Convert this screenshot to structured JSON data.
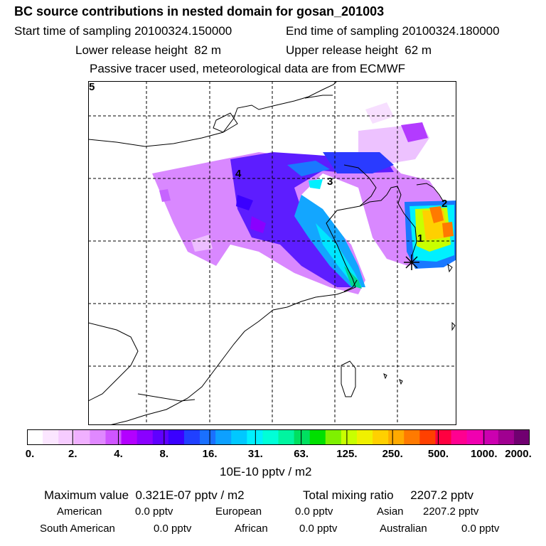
{
  "title": "BC  source contributions in nested domain for gosan_201003",
  "start_label": "Start time of sampling",
  "start_value": "20100324.150000",
  "end_label": "End time of sampling",
  "end_value": "20100324.180000",
  "lower_label": "Lower release height",
  "lower_value": "82 m",
  "upper_label": "Upper release height",
  "upper_value": "62 m",
  "tracer_note": "Passive tracer used, meteorological data are from ECMWF",
  "map": {
    "region_labels": [
      "1",
      "2",
      "3",
      "4",
      "5"
    ],
    "receptor_marker": "asterisk"
  },
  "colorbar": {
    "ticks": [
      "0.",
      "2.",
      "4.",
      "8.",
      "16.",
      "31.",
      "63.",
      "125.",
      "250.",
      "500.",
      "1000.",
      "2000."
    ],
    "units": "10E-10 pptv / m2",
    "colors": [
      "#ffffff",
      "#fbe6ff",
      "#f6ccff",
      "#f0b0ff",
      "#e088ff",
      "#cf55ff",
      "#b300ff",
      "#8a00ff",
      "#5f00ff",
      "#3a00ff",
      "#2040ff",
      "#1a70ff",
      "#0da0ff",
      "#00c8ff",
      "#00f0ff",
      "#00ffd8",
      "#00f5a0",
      "#00e060",
      "#00e000",
      "#7ff000",
      "#c8ff00",
      "#f0f000",
      "#ffd000",
      "#ffaa00",
      "#ff7a00",
      "#ff4000",
      "#ff0040",
      "#ff0090",
      "#f000b0",
      "#cc00b0",
      "#a00090",
      "#700070"
    ]
  },
  "summary": {
    "max_label": "Maximum value",
    "max_value": "0.321E-07 pptv / m2",
    "total_label": "Total mixing ratio",
    "total_value": "2207.2 pptv"
  },
  "regions": [
    {
      "name": "American",
      "value": "0.0 pptv"
    },
    {
      "name": "European",
      "value": "0.0 pptv"
    },
    {
      "name": "Asian",
      "value": "2207.2 pptv"
    },
    {
      "name": "South American",
      "value": "0.0 pptv"
    },
    {
      "name": "African",
      "value": "0.0 pptv"
    },
    {
      "name": "Australian",
      "value": "0.0 pptv"
    }
  ]
}
